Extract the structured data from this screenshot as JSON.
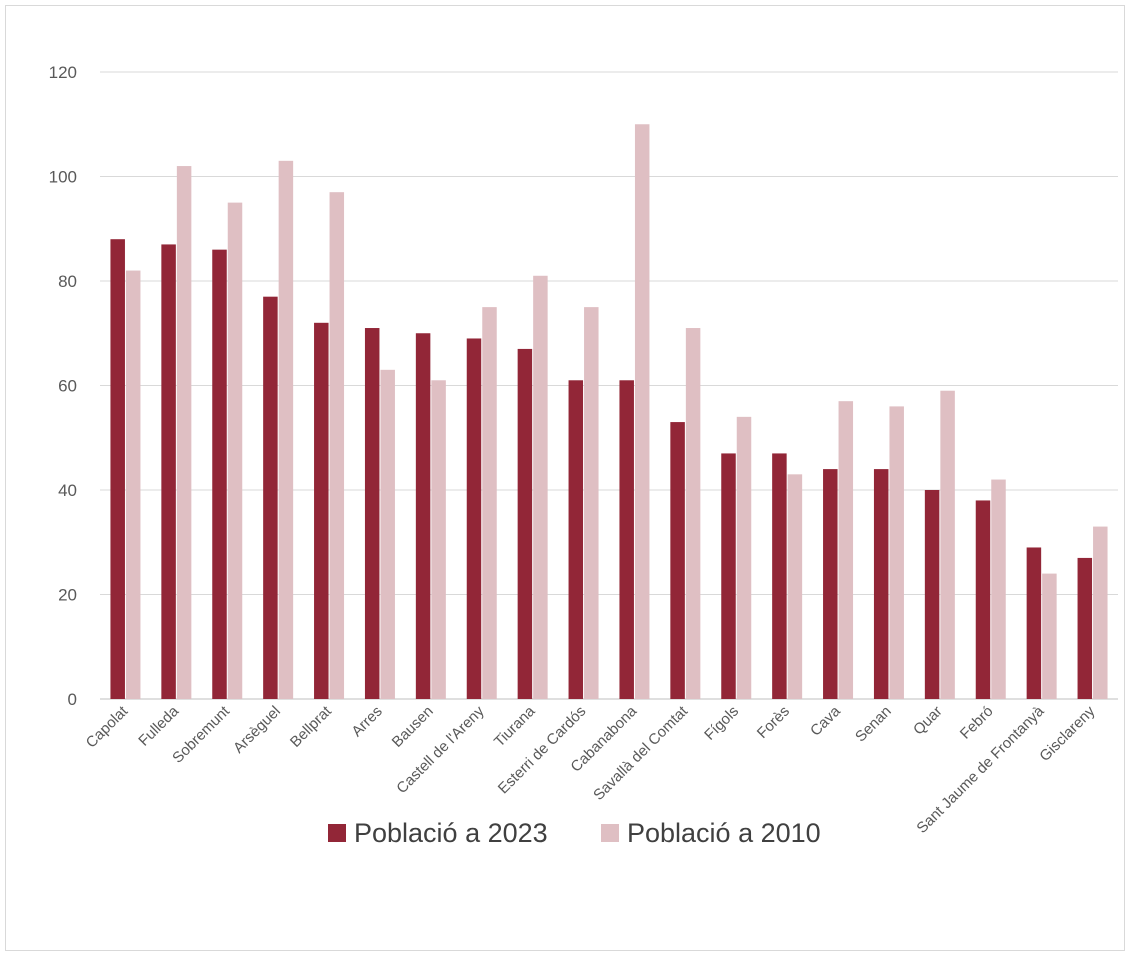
{
  "chart_data": {
    "type": "bar",
    "title": "",
    "xlabel": "",
    "ylabel": "",
    "ylim": [
      0,
      120
    ],
    "yticks": [
      0,
      20,
      40,
      60,
      80,
      100,
      120
    ],
    "grid": true,
    "legend_position": "bottom",
    "categories": [
      "Capolat",
      "Fulleda",
      "Sobremunt",
      "Arsèguel",
      "Bellprat",
      "Arres",
      "Bausen",
      "Castell de l'Areny",
      "Tiurana",
      "Esterri de Cardós",
      "Cabanabona",
      "Savallà del Comtat",
      "Fígols",
      "Forès",
      "Cava",
      "Senan",
      "Quar",
      "Febró",
      "Sant Jaume de Frontanyà",
      "Gisclareny"
    ],
    "series": [
      {
        "name": "Població a 2023",
        "color": "#922637",
        "values": [
          88,
          87,
          86,
          77,
          72,
          71,
          70,
          69,
          67,
          61,
          61,
          53,
          47,
          47,
          44,
          44,
          40,
          38,
          29,
          27
        ]
      },
      {
        "name": "Població a 2010",
        "color": "#dfbfc3",
        "values": [
          82,
          102,
          95,
          103,
          97,
          63,
          61,
          75,
          81,
          75,
          110,
          71,
          54,
          43,
          57,
          56,
          59,
          42,
          24,
          33
        ]
      }
    ]
  }
}
